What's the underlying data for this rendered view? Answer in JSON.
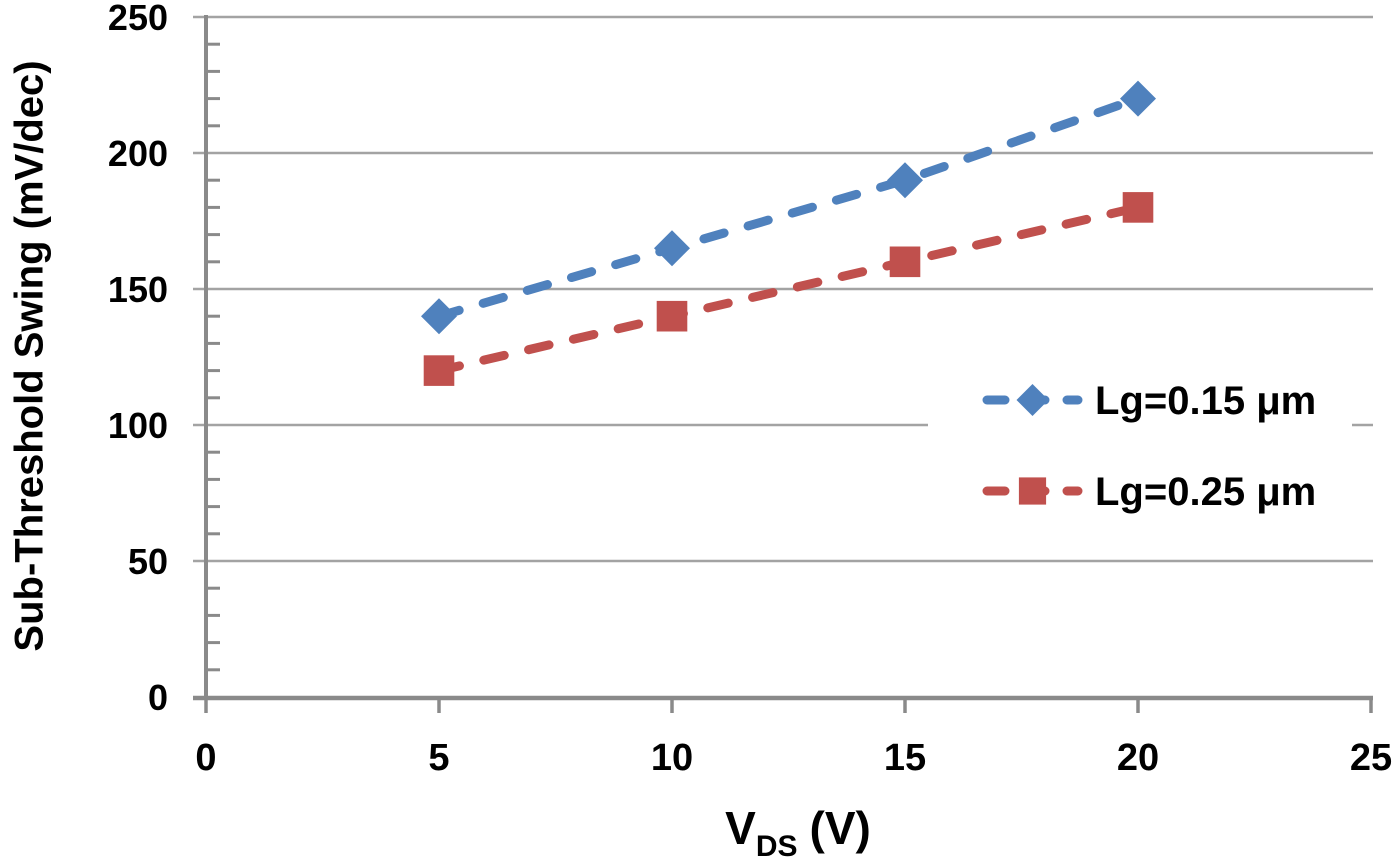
{
  "chart_data": {
    "type": "line",
    "title": "",
    "ylabel": "Sub-Threshold Swing (mV/dec)",
    "xlabel": "V_DS (V)",
    "xlabel_parts": {
      "main": "V",
      "sub": "DS",
      "unit": "(V)"
    },
    "x": [
      5,
      10,
      15,
      20
    ],
    "series": [
      {
        "name": "Lg=0.15 μm",
        "marker": "diamond",
        "color": "#4f81bd",
        "values": [
          140,
          165,
          190,
          220
        ]
      },
      {
        "name": "Lg=0.25 μm",
        "marker": "square",
        "color": "#c0504d",
        "values": [
          120,
          140,
          160,
          180
        ]
      }
    ],
    "xlim": [
      0,
      25
    ],
    "ylim": [
      0,
      250
    ],
    "x_ticks": [
      0,
      5,
      10,
      15,
      20,
      25
    ],
    "y_ticks": [
      0,
      50,
      100,
      150,
      200,
      250
    ],
    "y_minor_step": 10,
    "grid": "horizontal-major",
    "line_style": "dashed",
    "legend_position": "middle-right",
    "colors": {
      "axis": "#8a8a8a",
      "grid": "#a3a3a3",
      "text": "#000000",
      "background": "#ffffff"
    }
  }
}
